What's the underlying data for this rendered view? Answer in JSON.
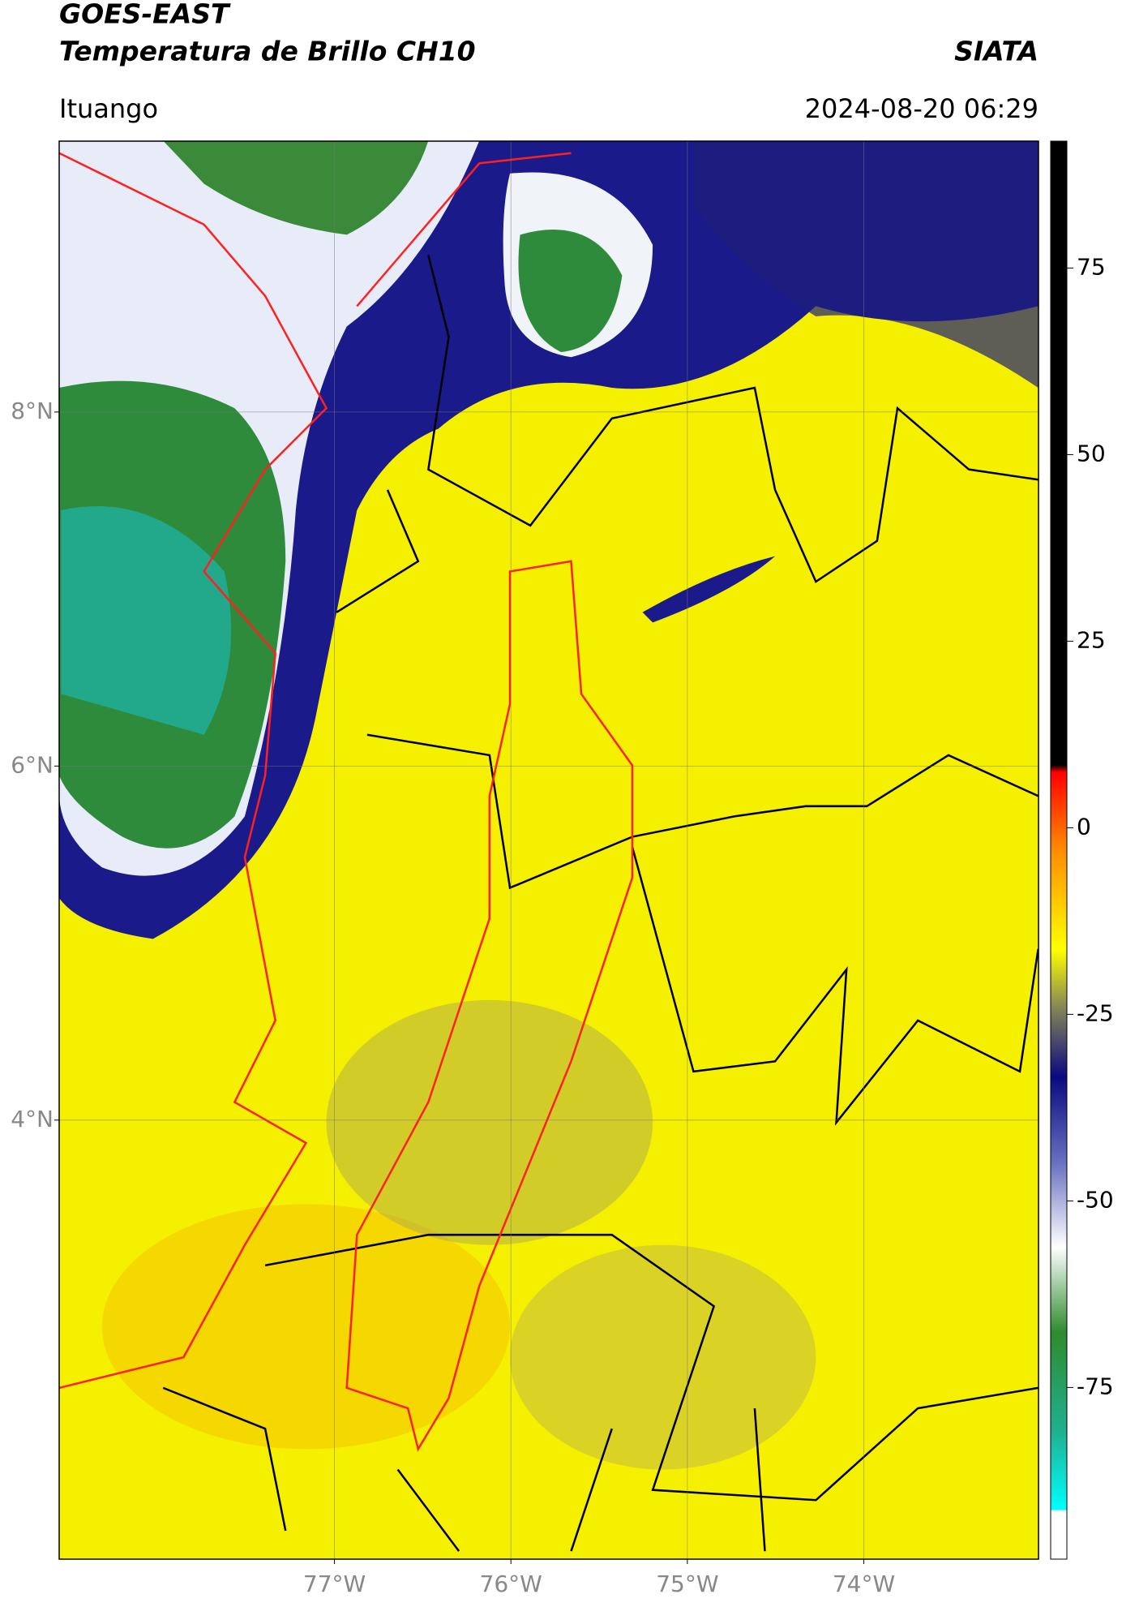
{
  "header": {
    "title": "GOES-EAST",
    "subtitle": "Temperatura de Brillo CH10",
    "org": "SIATA",
    "location": "Ituango",
    "timestamp": "2024-08-20 06:29"
  },
  "map": {
    "xlim": [
      -78.56,
      -73.01
    ],
    "ylim": [
      1.52,
      9.53
    ],
    "xticks": [
      {
        "value": -77,
        "label": "77°W"
      },
      {
        "value": -76,
        "label": "76°W"
      },
      {
        "value": -75,
        "label": "75°W"
      },
      {
        "value": -74,
        "label": "74°W"
      }
    ],
    "yticks": [
      {
        "value": 8,
        "label": "8°N"
      },
      {
        "value": 6,
        "label": "6°N"
      },
      {
        "value": 4,
        "label": "4°N"
      }
    ]
  },
  "colorbar": {
    "lim": [
      -98,
      92
    ],
    "ticks": [
      75,
      50,
      25,
      0,
      -25,
      -50,
      -75
    ]
  }
}
